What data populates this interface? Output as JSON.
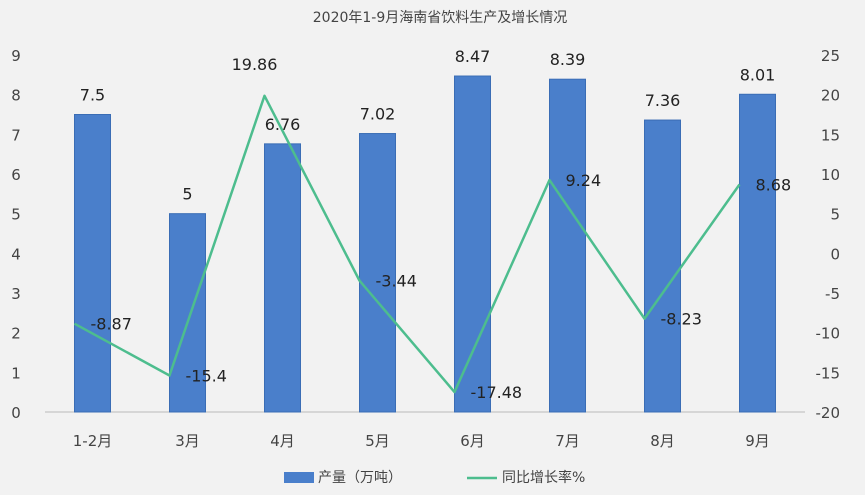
{
  "chart_data": {
    "type": "bar",
    "title": "2020年1-9月海南省饮料生产及增长情况",
    "categories": [
      "1-2月",
      "3月",
      "4月",
      "5月",
      "6月",
      "7月",
      "8月",
      "9月"
    ],
    "series": [
      {
        "name": "产量（万吨）",
        "type": "bar",
        "axis": "left",
        "values": [
          7.5,
          5,
          6.76,
          7.02,
          8.47,
          8.39,
          7.36,
          8.01
        ],
        "labels": [
          "7.5",
          "5",
          "6.76",
          "7.02",
          "8.47",
          "8.39",
          "7.36",
          "8.01"
        ]
      },
      {
        "name": "同比增长率%",
        "type": "line",
        "axis": "right",
        "values": [
          -8.87,
          -15.4,
          19.86,
          -3.44,
          -17.48,
          9.24,
          -8.23,
          8.68
        ],
        "labels": [
          "-8.87",
          "-15.4",
          "19.86",
          "-3.44",
          "-17.48",
          "9.24",
          "-8.23",
          "8.68"
        ]
      }
    ],
    "ylim_left": [
      0,
      9
    ],
    "ylim_right": [
      -20,
      25
    ],
    "yticks_left": [
      "0",
      "1",
      "2",
      "3",
      "4",
      "5",
      "6",
      "7",
      "8",
      "9"
    ],
    "yticks_right": [
      "-20",
      "-15",
      "-10",
      "-5",
      "0",
      "5",
      "10",
      "15",
      "20",
      "25"
    ],
    "grid": false,
    "legend_position": "bottom",
    "colors": {
      "bar": "#4a7fcb",
      "bar_edge": "#3a6db5",
      "line": "#4dbd8e"
    }
  }
}
